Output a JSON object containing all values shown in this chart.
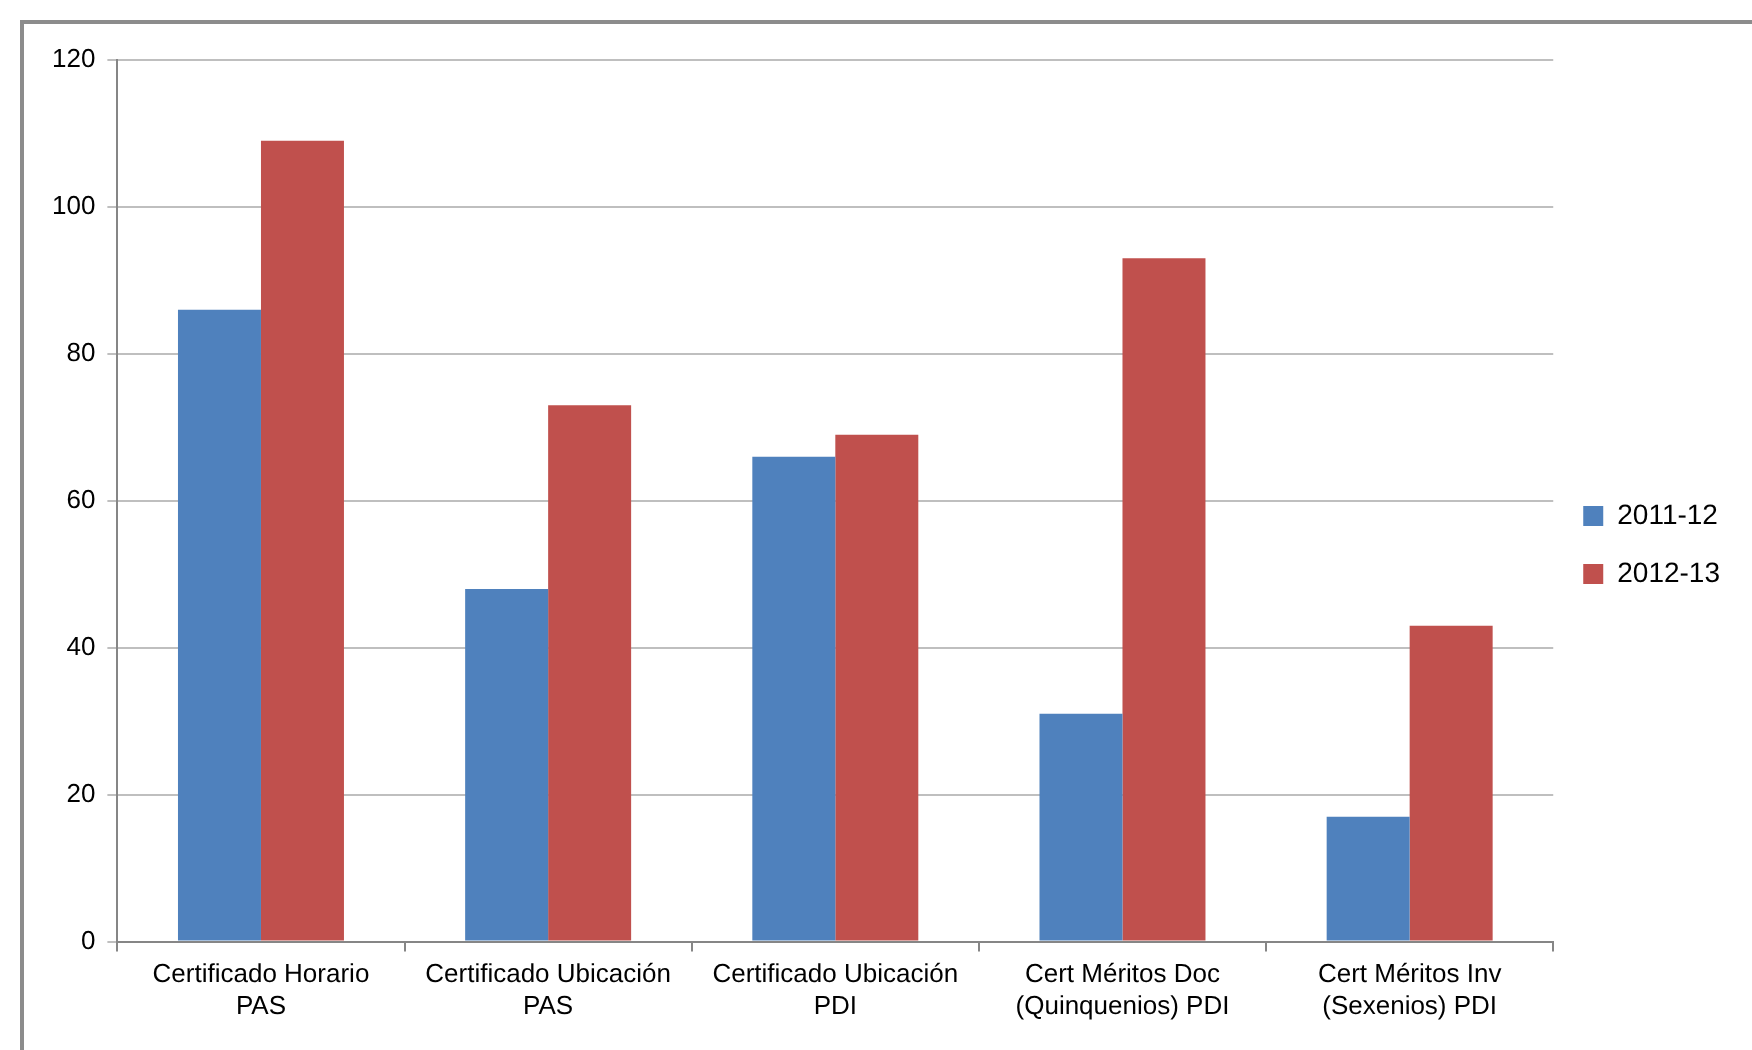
{
  "chart_data": {
    "type": "bar",
    "categories": [
      "Certificado Horario PAS",
      "Certificado Ubicación PAS",
      "Certificado Ubicación PDI",
      "Cert Méritos Doc (Quinquenios) PDI",
      "Cert Méritos Inv (Sexenios) PDI"
    ],
    "series": [
      {
        "name": "2011-12",
        "color": "#4f81bd",
        "values": [
          86,
          48,
          66,
          31,
          17
        ]
      },
      {
        "name": "2012-13",
        "color": "#c0504d",
        "values": [
          109,
          73,
          69,
          93,
          43
        ]
      }
    ],
    "ylim": [
      0,
      120
    ],
    "yticks": [
      0,
      20,
      40,
      60,
      80,
      100,
      120
    ],
    "grid": "y",
    "legend": "right"
  }
}
